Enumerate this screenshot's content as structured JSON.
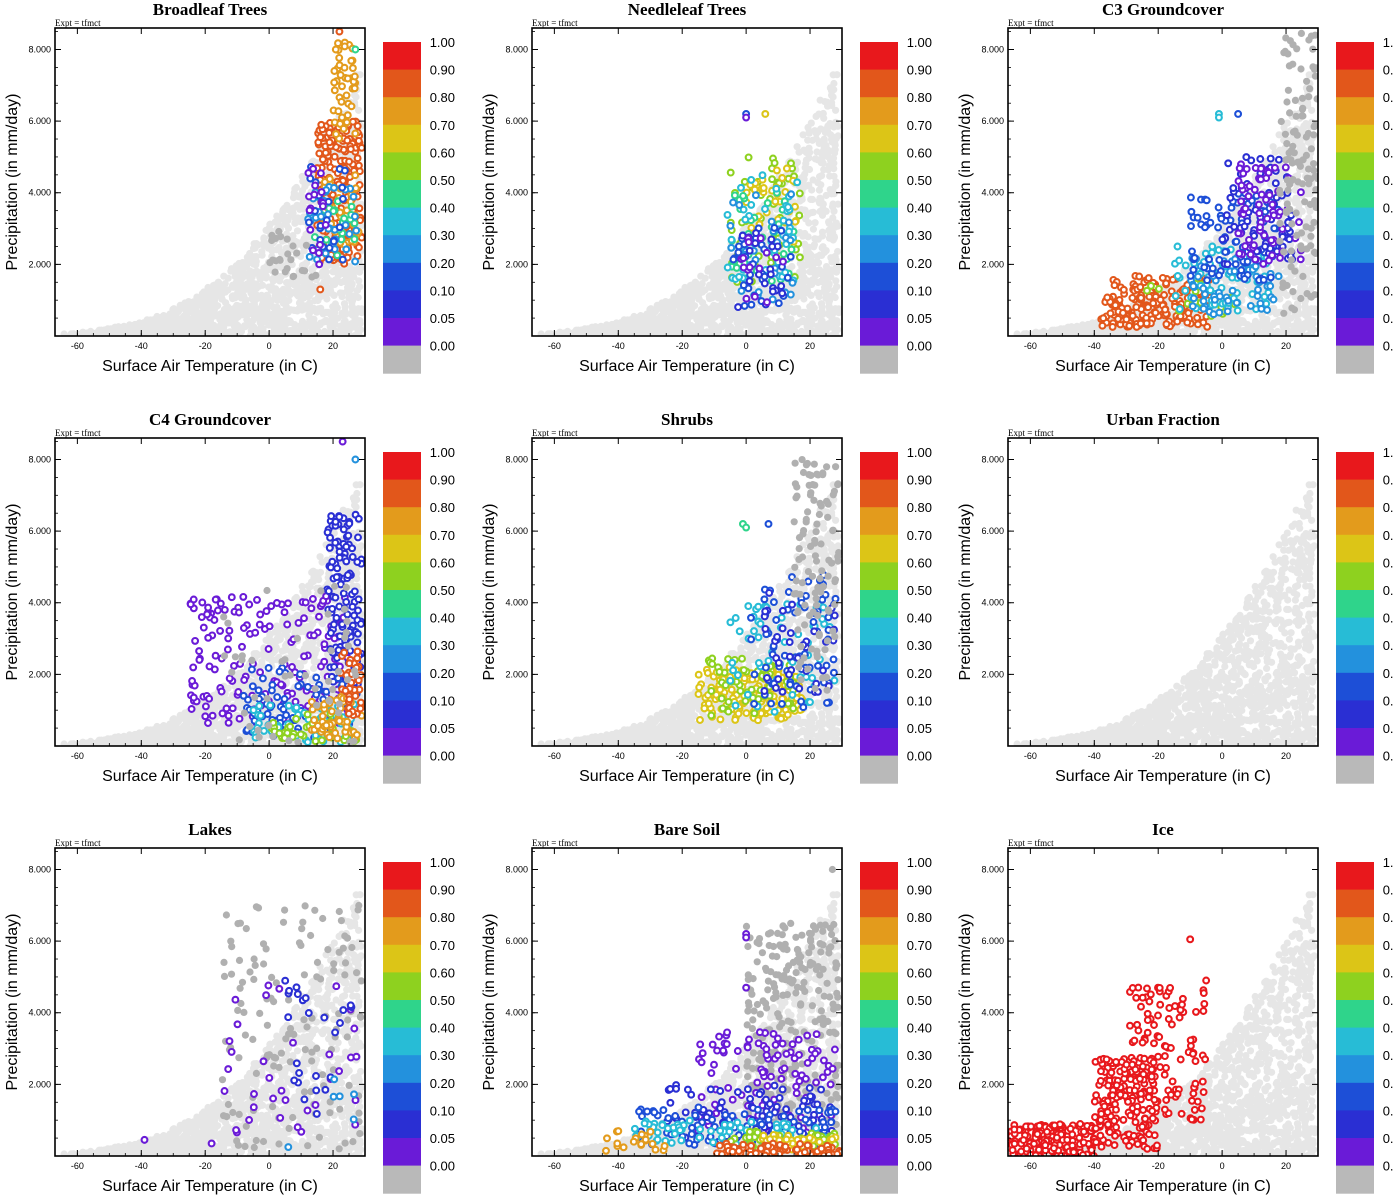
{
  "figure": {
    "expt_label": "Expt = tfmct",
    "xlabel": "Surface Air Temperature (in C)",
    "ylabel": "Precipitation (in mm/day)",
    "xlim": [
      -67,
      30
    ],
    "ylim": [
      0,
      8600
    ],
    "x_ticks": [
      -60,
      -40,
      -20,
      0,
      20
    ],
    "y_ticks": [
      2000,
      4000,
      6000,
      8000
    ],
    "y_tick_labels": [
      "2.000",
      "4.000",
      "6.000",
      "8.000"
    ],
    "colorbar": {
      "labels": [
        "1.00",
        "0.90",
        "0.80",
        "0.70",
        "0.60",
        "0.50",
        "0.40",
        "0.30",
        "0.20",
        "0.10",
        "0.05",
        "0.00"
      ],
      "colors": [
        "#e8181c",
        "#e2571b",
        "#e39b1c",
        "#dcc517",
        "#8ed11f",
        "#2fd48b",
        "#27bcd6",
        "#2391dd",
        "#1d4fd7",
        "#2a2fd3",
        "#6a1bd7",
        "#b9b9b9"
      ]
    },
    "background_color": "#e6e6e6",
    "zero_color": "#b0b0b0"
  },
  "chart_data": [
    {
      "type": "scatter",
      "title": "Broadleaf Trees",
      "xlabel": "Surface Air Temperature (in C)",
      "ylabel": "Precipitation (in mm/day)",
      "xlim": [
        -67,
        30
      ],
      "ylim": [
        0,
        8600
      ],
      "clusters": [
        {
          "fraction": 0.82,
          "n": 220,
          "x": [
            15,
            29
          ],
          "y": [
            2000,
            6000
          ]
        },
        {
          "fraction": 0.8,
          "n": 45,
          "x": [
            20,
            27
          ],
          "y": [
            5500,
            8200
          ]
        },
        {
          "fraction": 0.72,
          "n": 35,
          "x": [
            16,
            28
          ],
          "y": [
            2500,
            4500
          ]
        },
        {
          "fraction": 0.5,
          "n": 20,
          "x": [
            14,
            27
          ],
          "y": [
            2200,
            4000
          ]
        },
        {
          "fraction": 0.3,
          "n": 35,
          "x": [
            12,
            28
          ],
          "y": [
            2000,
            4200
          ]
        },
        {
          "fraction": 0.2,
          "n": 25,
          "x": [
            12,
            24
          ],
          "y": [
            2000,
            4800
          ]
        },
        {
          "fraction": 0.05,
          "n": 18,
          "x": [
            12,
            18
          ],
          "y": [
            2000,
            5000
          ]
        },
        {
          "fraction": 0.0,
          "n": 25,
          "x": [
            0,
            15
          ],
          "y": [
            1500,
            3000
          ]
        }
      ],
      "points": [
        {
          "x": 22,
          "y": 8500,
          "fraction": 0.82
        },
        {
          "x": 27,
          "y": 8000,
          "fraction": 0.5
        },
        {
          "x": 16,
          "y": 1300,
          "fraction": 0.82
        }
      ]
    },
    {
      "type": "scatter",
      "title": "Needleleaf Trees",
      "xlabel": "Surface Air Temperature (in C)",
      "ylabel": "Precipitation (in mm/day)",
      "xlim": [
        -67,
        30
      ],
      "ylim": [
        0,
        8600
      ],
      "clusters": [
        {
          "fraction": 0.6,
          "n": 60,
          "x": [
            -5,
            17
          ],
          "y": [
            1500,
            5000
          ]
        },
        {
          "fraction": 0.7,
          "n": 35,
          "x": [
            0,
            16
          ],
          "y": [
            2500,
            4800
          ]
        },
        {
          "fraction": 0.5,
          "n": 40,
          "x": [
            -5,
            15
          ],
          "y": [
            1500,
            4000
          ]
        },
        {
          "fraction": 0.4,
          "n": 45,
          "x": [
            -6,
            16
          ],
          "y": [
            1200,
            4500
          ]
        },
        {
          "fraction": 0.3,
          "n": 30,
          "x": [
            -5,
            15
          ],
          "y": [
            1000,
            4000
          ]
        },
        {
          "fraction": 0.2,
          "n": 30,
          "x": [
            -4,
            14
          ],
          "y": [
            800,
            3500
          ]
        },
        {
          "fraction": 0.1,
          "n": 20,
          "x": [
            -3,
            12
          ],
          "y": [
            800,
            3000
          ]
        },
        {
          "fraction": 0.05,
          "n": 15,
          "x": [
            -2,
            12
          ],
          "y": [
            900,
            3000
          ]
        }
      ],
      "points": [
        {
          "x": 0,
          "y": 6200,
          "fraction": 0.2
        },
        {
          "x": 0,
          "y": 6100,
          "fraction": 0.05
        },
        {
          "x": 6,
          "y": 6200,
          "fraction": 0.7
        }
      ]
    },
    {
      "type": "scatter",
      "title": "C3 Groundcover",
      "xlabel": "Surface Air Temperature (in C)",
      "ylabel": "Precipitation (in mm/day)",
      "xlim": [
        -67,
        30
      ],
      "ylim": [
        0,
        8600
      ],
      "clusters": [
        {
          "fraction": 0.9,
          "n": 140,
          "x": [
            -35,
            -3
          ],
          "y": [
            250,
            1700
          ]
        },
        {
          "fraction": 0.82,
          "n": 80,
          "x": [
            -38,
            -10
          ],
          "y": [
            250,
            1100
          ]
        },
        {
          "fraction": 0.6,
          "n": 20,
          "x": [
            -25,
            5
          ],
          "y": [
            500,
            1500
          ]
        },
        {
          "fraction": 0.4,
          "n": 70,
          "x": [
            -15,
            15
          ],
          "y": [
            700,
            2500
          ]
        },
        {
          "fraction": 0.3,
          "n": 60,
          "x": [
            -10,
            18
          ],
          "y": [
            600,
            2200
          ]
        },
        {
          "fraction": 0.2,
          "n": 90,
          "x": [
            -10,
            18
          ],
          "y": [
            1500,
            4000
          ]
        },
        {
          "fraction": 0.1,
          "n": 70,
          "x": [
            0,
            22
          ],
          "y": [
            2000,
            5000
          ]
        },
        {
          "fraction": 0.05,
          "n": 70,
          "x": [
            5,
            25
          ],
          "y": [
            2000,
            4800
          ]
        },
        {
          "fraction": 0.0,
          "n": 120,
          "x": [
            18,
            30
          ],
          "y": [
            600,
            8500
          ]
        }
      ],
      "points": [
        {
          "x": -1,
          "y": 6200,
          "fraction": 0.4
        },
        {
          "x": -1,
          "y": 6100,
          "fraction": 0.4
        },
        {
          "x": 5,
          "y": 6200,
          "fraction": 0.2
        }
      ]
    },
    {
      "type": "scatter",
      "title": "C4 Groundcover",
      "xlabel": "Surface Air Temperature (in C)",
      "ylabel": "Precipitation (in mm/day)",
      "xlim": [
        -67,
        30
      ],
      "ylim": [
        0,
        8600
      ],
      "clusters": [
        {
          "fraction": 0.05,
          "n": 180,
          "x": [
            -25,
            25
          ],
          "y": [
            600,
            4200
          ]
        },
        {
          "fraction": 0.1,
          "n": 130,
          "x": [
            18,
            29
          ],
          "y": [
            1500,
            6500
          ]
        },
        {
          "fraction": 0.2,
          "n": 80,
          "x": [
            -8,
            28
          ],
          "y": [
            200,
            2200
          ]
        },
        {
          "fraction": 0.4,
          "n": 60,
          "x": [
            -5,
            28
          ],
          "y": [
            100,
            1200
          ]
        },
        {
          "fraction": 0.6,
          "n": 40,
          "x": [
            0,
            28
          ],
          "y": [
            100,
            900
          ]
        },
        {
          "fraction": 0.8,
          "n": 50,
          "x": [
            13,
            29
          ],
          "y": [
            200,
            1500
          ]
        },
        {
          "fraction": 0.9,
          "n": 40,
          "x": [
            22,
            29
          ],
          "y": [
            800,
            2700
          ]
        },
        {
          "fraction": 0.0,
          "n": 50,
          "x": [
            -15,
            28
          ],
          "y": [
            0,
            4500
          ]
        }
      ],
      "points": [
        {
          "x": 23,
          "y": 8500,
          "fraction": 0.05
        },
        {
          "x": 27,
          "y": 8000,
          "fraction": 0.3
        }
      ]
    },
    {
      "type": "scatter",
      "title": "Shrubs",
      "xlabel": "Surface Air Temperature (in C)",
      "ylabel": "Precipitation (in mm/day)",
      "xlim": [
        -67,
        30
      ],
      "ylim": [
        0,
        8600
      ],
      "clusters": [
        {
          "fraction": 0.7,
          "n": 160,
          "x": [
            -15,
            18
          ],
          "y": [
            700,
            2200
          ]
        },
        {
          "fraction": 0.6,
          "n": 60,
          "x": [
            -12,
            15
          ],
          "y": [
            800,
            2500
          ]
        },
        {
          "fraction": 0.4,
          "n": 60,
          "x": [
            -5,
            28
          ],
          "y": [
            900,
            4000
          ]
        },
        {
          "fraction": 0.2,
          "n": 70,
          "x": [
            0,
            28
          ],
          "y": [
            1000,
            4800
          ]
        },
        {
          "fraction": 0.1,
          "n": 40,
          "x": [
            5,
            28
          ],
          "y": [
            1500,
            4500
          ]
        },
        {
          "fraction": 0.0,
          "n": 110,
          "x": [
            15,
            29
          ],
          "y": [
            1500,
            8000
          ]
        }
      ],
      "points": [
        {
          "x": -1,
          "y": 6200,
          "fraction": 0.5
        },
        {
          "x": 0,
          "y": 6100,
          "fraction": 0.5
        },
        {
          "x": 7,
          "y": 6200,
          "fraction": 0.2
        }
      ]
    },
    {
      "type": "scatter",
      "title": "Urban Fraction",
      "xlabel": "Surface Air Temperature (in C)",
      "ylabel": "Precipitation (in mm/day)",
      "xlim": [
        -67,
        30
      ],
      "ylim": [
        0,
        8600
      ],
      "clusters": [],
      "points": []
    },
    {
      "type": "scatter",
      "title": "Lakes",
      "xlabel": "Surface Air Temperature (in C)",
      "ylabel": "Precipitation (in mm/day)",
      "xlim": [
        -67,
        30
      ],
      "ylim": [
        0,
        8600
      ],
      "clusters": [
        {
          "fraction": 0.0,
          "n": 140,
          "x": [
            -15,
            29
          ],
          "y": [
            200,
            7000
          ]
        },
        {
          "fraction": 0.05,
          "n": 35,
          "x": [
            -15,
            28
          ],
          "y": [
            600,
            5000
          ]
        },
        {
          "fraction": 0.1,
          "n": 25,
          "x": [
            5,
            28
          ],
          "y": [
            1000,
            5000
          ]
        },
        {
          "fraction": 0.3,
          "n": 5,
          "x": [
            20,
            28
          ],
          "y": [
            1000,
            2500
          ]
        }
      ],
      "points": [
        {
          "x": -39,
          "y": 450,
          "fraction": 0.05
        },
        {
          "x": -18,
          "y": 350,
          "fraction": 0.05
        },
        {
          "x": 6,
          "y": 250,
          "fraction": 0.3
        }
      ]
    },
    {
      "type": "scatter",
      "title": "Bare Soil",
      "xlabel": "Surface Air Temperature (in C)",
      "ylabel": "Precipitation (in mm/day)",
      "xlim": [
        -67,
        30
      ],
      "ylim": [
        0,
        8600
      ],
      "clusters": [
        {
          "fraction": 0.0,
          "n": 260,
          "x": [
            0,
            29
          ],
          "y": [
            800,
            6500
          ]
        },
        {
          "fraction": 0.05,
          "n": 120,
          "x": [
            -15,
            28
          ],
          "y": [
            600,
            3500
          ]
        },
        {
          "fraction": 0.1,
          "n": 90,
          "x": [
            -25,
            28
          ],
          "y": [
            400,
            2000
          ]
        },
        {
          "fraction": 0.2,
          "n": 90,
          "x": [
            -35,
            28
          ],
          "y": [
            300,
            1400
          ]
        },
        {
          "fraction": 0.4,
          "n": 70,
          "x": [
            -35,
            25
          ],
          "y": [
            300,
            1000
          ]
        },
        {
          "fraction": 0.6,
          "n": 40,
          "x": [
            -5,
            28
          ],
          "y": [
            150,
            700
          ]
        },
        {
          "fraction": 0.7,
          "n": 40,
          "x": [
            5,
            29
          ],
          "y": [
            100,
            600
          ]
        },
        {
          "fraction": 0.9,
          "n": 90,
          "x": [
            -10,
            30
          ],
          "y": [
            0,
            350
          ]
        },
        {
          "fraction": 0.8,
          "n": 20,
          "x": [
            -45,
            -25
          ],
          "y": [
            100,
            700
          ]
        }
      ],
      "points": [
        {
          "x": 0,
          "y": 6200,
          "fraction": 0.05
        },
        {
          "x": 0,
          "y": 6100,
          "fraction": 0.05
        },
        {
          "x": 7,
          "y": 6200,
          "fraction": 0.0
        },
        {
          "x": 0,
          "y": 4700,
          "fraction": 0.05
        },
        {
          "x": 27,
          "y": 8000,
          "fraction": 0.0
        }
      ]
    },
    {
      "type": "scatter",
      "title": "Ice",
      "xlabel": "Surface Air Temperature (in C)",
      "ylabel": "Precipitation (in mm/day)",
      "xlim": [
        -67,
        30
      ],
      "ylim": [
        0,
        8600
      ],
      "clusters": [
        {
          "fraction": 1.0,
          "n": 160,
          "x": [
            -66,
            -40
          ],
          "y": [
            0,
            900
          ]
        },
        {
          "fraction": 1.0,
          "n": 180,
          "x": [
            -40,
            -20
          ],
          "y": [
            200,
            2800
          ]
        },
        {
          "fraction": 1.0,
          "n": 110,
          "x": [
            -30,
            -5
          ],
          "y": [
            1000,
            4800
          ]
        }
      ],
      "points": [
        {
          "x": -10,
          "y": 6050,
          "fraction": 1.0
        },
        {
          "x": -5,
          "y": 4900,
          "fraction": 1.0
        }
      ]
    }
  ]
}
